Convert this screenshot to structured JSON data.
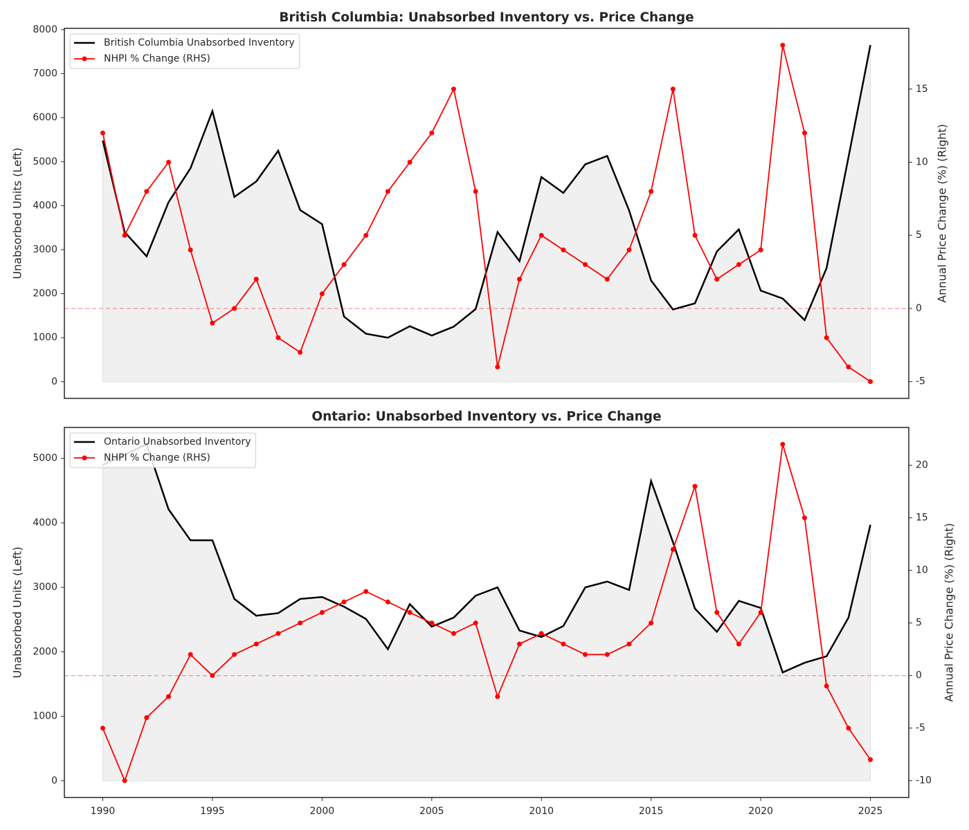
{
  "chart_data": [
    {
      "type": "line",
      "title": "British Columbia: Unabsorbed Inventory vs. Price Change",
      "ylabel": "Unabsorbed Units (Left)",
      "y2label": "Annual Price Change (%) (Right)",
      "x": [
        1990,
        1991,
        1992,
        1993,
        1994,
        1995,
        1996,
        1997,
        1998,
        1999,
        2000,
        2001,
        2002,
        2003,
        2004,
        2005,
        2006,
        2007,
        2008,
        2009,
        2010,
        2011,
        2012,
        2013,
        2014,
        2015,
        2016,
        2017,
        2018,
        2019,
        2020,
        2021,
        2022,
        2023,
        2024,
        2025
      ],
      "series": [
        {
          "name": "British Columbia Unabsorbed Inventory",
          "color": "#000000",
          "fill": "#f0f0f0",
          "values": [
            5480,
            3400,
            2850,
            4080,
            4850,
            6150,
            4200,
            4550,
            5250,
            3900,
            3580,
            1480,
            1090,
            1000,
            1260,
            1050,
            1250,
            1650,
            3400,
            2740,
            4650,
            4290,
            4940,
            5130,
            3890,
            2300,
            1640,
            1780,
            2960,
            3460,
            2070,
            1890,
            1400,
            2580,
            5100,
            7650
          ]
        },
        {
          "name": "NHPI % Change (RHS)",
          "color": "#ff0000",
          "axis": "y2",
          "marker": true,
          "values": [
            12,
            5,
            8,
            10,
            4,
            -1,
            0,
            2,
            -2,
            -3,
            1,
            3,
            5,
            8,
            10,
            12,
            15,
            8,
            -4,
            2,
            5,
            4,
            3,
            2,
            4,
            8,
            15,
            5,
            2,
            3,
            4,
            18,
            12,
            -2,
            -4,
            -5
          ]
        }
      ],
      "xlim": [
        1988.25,
        2026.75
      ],
      "ylim": [
        -380,
        8030
      ],
      "yticks": [
        0,
        1000,
        2000,
        3000,
        4000,
        5000,
        6000,
        7000,
        8000
      ],
      "y2lim": [
        -6.15,
        19.15
      ],
      "y2ticks": [
        -5,
        0,
        5,
        10,
        15
      ],
      "reference_line": {
        "axis": "y2",
        "value": 0,
        "color": "#ff0000"
      },
      "legend": "upper left"
    },
    {
      "type": "line",
      "title": "Ontario: Unabsorbed Inventory vs. Price Change",
      "ylabel": "Unabsorbed Units (Left)",
      "y2label": "Annual Price Change (%) (Right)",
      "x": [
        1990,
        1991,
        1992,
        1993,
        1994,
        1995,
        1996,
        1997,
        1998,
        1999,
        2000,
        2001,
        2002,
        2003,
        2004,
        2005,
        2006,
        2007,
        2008,
        2009,
        2010,
        2011,
        2012,
        2013,
        2014,
        2015,
        2016,
        2017,
        2018,
        2019,
        2020,
        2021,
        2022,
        2023,
        2024,
        2025
      ],
      "series": [
        {
          "name": "Ontario Unabsorbed Inventory",
          "color": "#000000",
          "fill": "#f0f0f0",
          "values": [
            4900,
            5060,
            5220,
            4210,
            3730,
            3730,
            2820,
            2560,
            2600,
            2820,
            2850,
            2700,
            2510,
            2040,
            2740,
            2390,
            2530,
            2870,
            3000,
            2330,
            2230,
            2400,
            3000,
            3090,
            2960,
            4650,
            3700,
            2670,
            2310,
            2790,
            2680,
            1680,
            1830,
            1930,
            2530,
            3970
          ]
        },
        {
          "name": "NHPI % Change (RHS)",
          "color": "#ff0000",
          "axis": "y2",
          "marker": true,
          "values": [
            -5,
            -10,
            -4,
            -2,
            2,
            0,
            2,
            3,
            4,
            5,
            6,
            7,
            8,
            7,
            6,
            5,
            4,
            5,
            -2,
            3,
            4,
            3,
            2,
            2,
            3,
            5,
            12,
            18,
            6,
            3,
            6,
            22,
            15,
            -1,
            -5,
            -8
          ]
        }
      ],
      "xlim": [
        1988.25,
        2026.75
      ],
      "xticks": [
        1990,
        1995,
        2000,
        2005,
        2010,
        2015,
        2020,
        2025
      ],
      "ylim": [
        -260,
        5480
      ],
      "yticks": [
        0,
        1000,
        2000,
        3000,
        4000,
        5000
      ],
      "y2lim": [
        -11.6,
        23.6
      ],
      "y2ticks": [
        -10,
        -5,
        0,
        5,
        10,
        15,
        20
      ],
      "reference_line": {
        "axis": "y2",
        "value": 0,
        "color": "#ff0000"
      },
      "legend": "upper left"
    }
  ]
}
